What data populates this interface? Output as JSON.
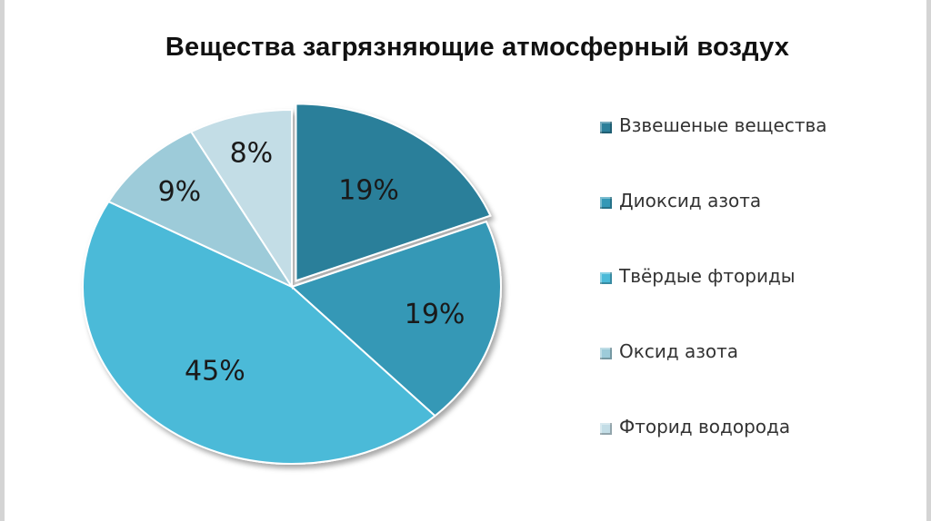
{
  "slide": {
    "title": "Вещества загрязняющие атмосферный воздух"
  },
  "chart_data": {
    "type": "pie",
    "title": "Вещества загрязняющие атмосферный воздух",
    "categories": [
      "Взвешеные вещества",
      "Диоксид азота",
      "Твёрдые фториды",
      "Оксид азота",
      "Фторид водорода"
    ],
    "values": [
      19,
      19,
      45,
      9,
      8
    ],
    "value_labels": [
      "19%",
      "19%",
      "45%",
      "9%",
      "8%"
    ],
    "colors": [
      "#2b7f9a",
      "#3498b6",
      "#4bbad8",
      "#9dcbd9",
      "#c3dde6"
    ],
    "legend_position": "right",
    "start": "12 o'clock, clockwise"
  }
}
